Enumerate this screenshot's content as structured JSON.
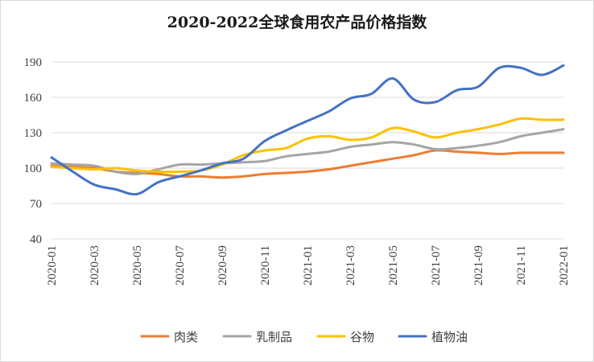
{
  "chart_data": {
    "type": "line",
    "title": "2020-2022全球食用农产品价格指数",
    "xlabel": "",
    "ylabel": "",
    "ylim": [
      40,
      190
    ],
    "yticks": [
      40,
      70,
      100,
      130,
      160,
      190
    ],
    "grid": true,
    "legend_position": "bottom",
    "categories": [
      "2020-01",
      "2020-02",
      "2020-03",
      "2020-04",
      "2020-05",
      "2020-06",
      "2020-07",
      "2020-08",
      "2020-09",
      "2020-10",
      "2020-11",
      "2020-12",
      "2021-01",
      "2021-02",
      "2021-03",
      "2021-04",
      "2021-05",
      "2021-06",
      "2021-07",
      "2021-08",
      "2021-09",
      "2021-10",
      "2021-11",
      "2021-12",
      "2022-01"
    ],
    "x_tick_labels": [
      "2020-01",
      "2020-03",
      "2020-05",
      "2020-07",
      "2020-09",
      "2020-11",
      "2021-01",
      "2021-03",
      "2021-05",
      "2021-07",
      "2021-09",
      "2021-11",
      "2022-01"
    ],
    "series": [
      {
        "name": "肉类",
        "color": "#ed7d31",
        "values": [
          102,
          101,
          100,
          97,
          96,
          95,
          93,
          93,
          92,
          93,
          95,
          96,
          97,
          99,
          102,
          105,
          108,
          111,
          115,
          114,
          113,
          112,
          113,
          113,
          113
        ]
      },
      {
        "name": "乳制品",
        "color": "#a5a5a5",
        "values": [
          104,
          103,
          102,
          97,
          95,
          99,
          103,
          103,
          104,
          105,
          106,
          110,
          112,
          114,
          118,
          120,
          122,
          120,
          116,
          117,
          119,
          122,
          127,
          130,
          133
        ]
      },
      {
        "name": "谷物",
        "color": "#ffc000",
        "values": [
          101,
          100,
          99,
          100,
          98,
          97,
          97,
          98,
          103,
          111,
          115,
          117,
          125,
          127,
          124,
          126,
          134,
          131,
          126,
          130,
          133,
          137,
          142,
          141,
          141
        ]
      },
      {
        "name": "植物油",
        "color": "#4472c4",
        "values": [
          109,
          97,
          86,
          82,
          78,
          88,
          93,
          98,
          104,
          108,
          123,
          132,
          140,
          148,
          159,
          163,
          176,
          158,
          156,
          166,
          169,
          185,
          185,
          179,
          187
        ]
      }
    ]
  }
}
